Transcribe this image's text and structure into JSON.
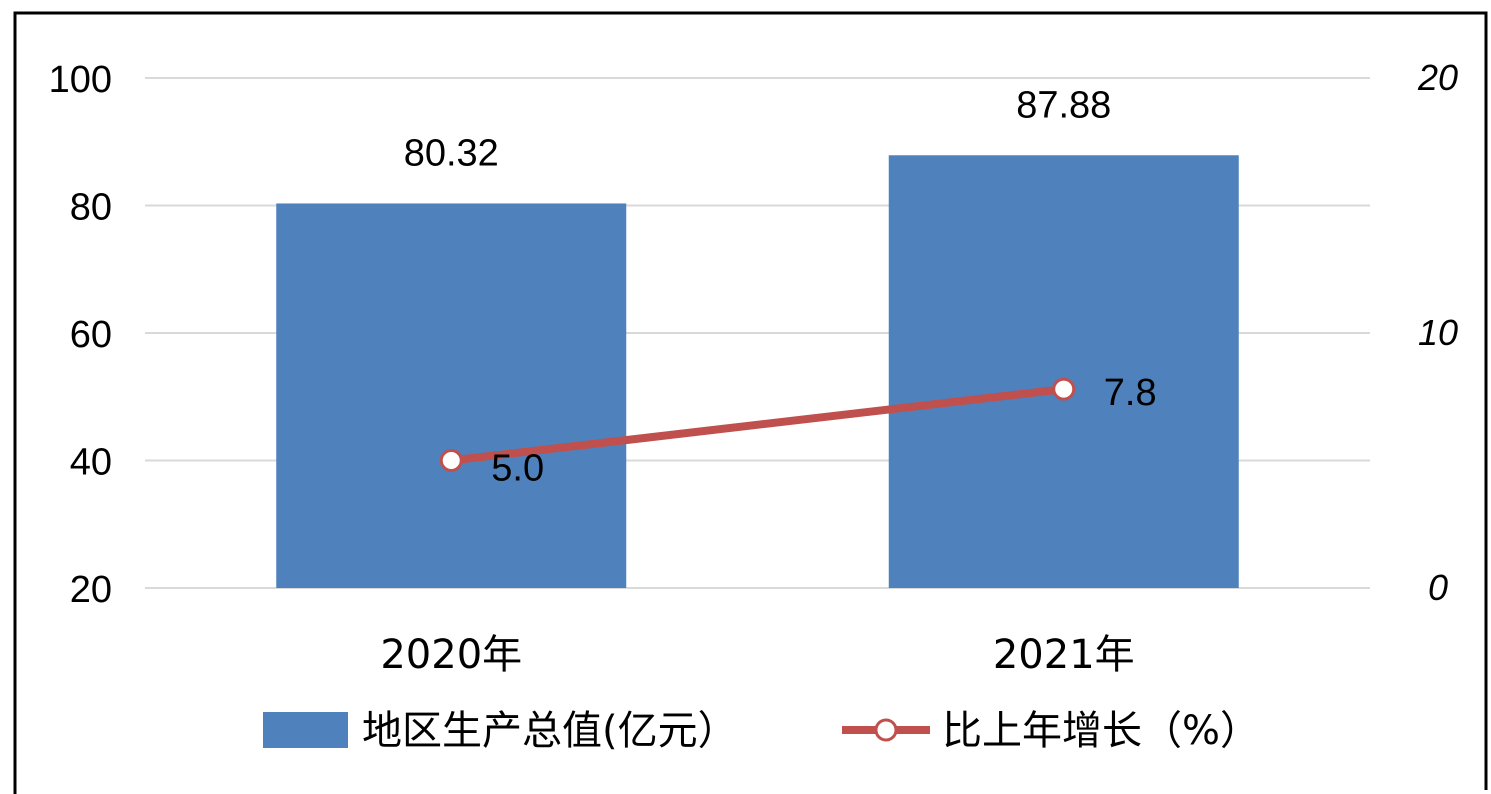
{
  "chart_data": {
    "type": "bar",
    "categories": [
      "2020年",
      "2021年"
    ],
    "series": [
      {
        "name": "地区生产总值(亿元）",
        "type": "bar",
        "axis": "left",
        "values": [
          80.32,
          87.88
        ],
        "labels": [
          "80.32",
          "87.88"
        ]
      },
      {
        "name": "比上年增长（%）",
        "type": "line",
        "axis": "right",
        "values": [
          5.0,
          7.8
        ],
        "labels": [
          "5.0",
          "7.8"
        ]
      }
    ],
    "left_axis": {
      "ylim": [
        20,
        100
      ],
      "ticks": [
        20,
        40,
        60,
        80,
        100
      ],
      "tick_labels": [
        "20",
        "40",
        "60",
        "80",
        "100"
      ]
    },
    "right_axis": {
      "ylim": [
        0,
        20
      ],
      "ticks": [
        0,
        10,
        20
      ],
      "tick_labels": [
        "0",
        "10",
        "20"
      ]
    },
    "grid": true,
    "legend_position": "bottom",
    "colors": {
      "bar": "#4f81bd",
      "line": "#c0504d",
      "marker_fill": "#ffffff",
      "grid": "#d9d9d9",
      "frame": "#000000"
    }
  }
}
